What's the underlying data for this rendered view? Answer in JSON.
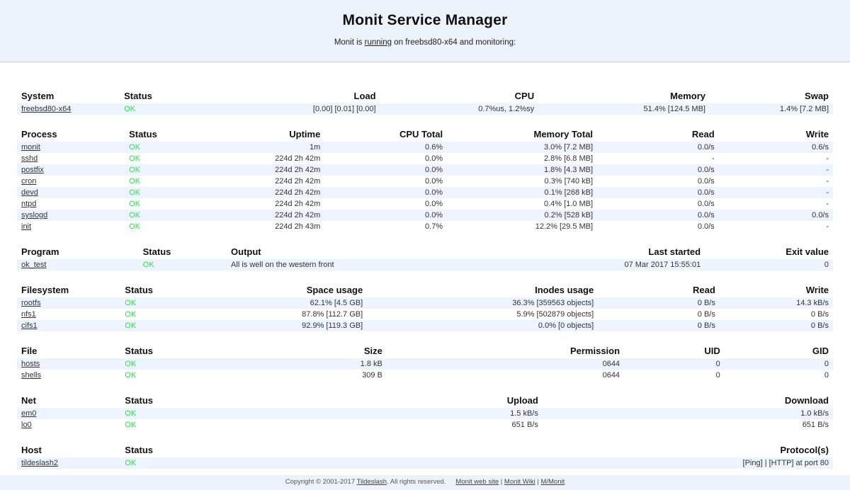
{
  "header": {
    "title": "Monit Service Manager",
    "subtitle_prefix": "Monit is ",
    "subtitle_link": "running",
    "subtitle_suffix": " on freebsd80-x64 and monitoring:"
  },
  "colors": {
    "ok_green": "#2ce24e",
    "band_bg": "#edf3fb",
    "stripe_bg": "#eef4fd",
    "header_border": "#c9c9c9"
  },
  "tables": [
    {
      "id": "system",
      "columns": [
        {
          "label": "System",
          "align": "left"
        },
        {
          "label": "Status",
          "align": "left"
        },
        {
          "label": "Load",
          "align": "right"
        },
        {
          "label": "CPU",
          "align": "right"
        },
        {
          "label": "Memory",
          "align": "right"
        },
        {
          "label": "Swap",
          "align": "right"
        }
      ],
      "rows": [
        [
          "freebsd80-x64",
          "OK",
          "[0.00] [0.01] [0.00]",
          "0.7%us, 1.2%sy",
          "51.4% [124.5 MB]",
          "1.4% [7.2 MB]"
        ]
      ]
    },
    {
      "id": "process",
      "columns": [
        {
          "label": "Process",
          "align": "left"
        },
        {
          "label": "Status",
          "align": "left"
        },
        {
          "label": "Uptime",
          "align": "right"
        },
        {
          "label": "CPU Total",
          "align": "right"
        },
        {
          "label": "Memory Total",
          "align": "right"
        },
        {
          "label": "Read",
          "align": "right"
        },
        {
          "label": "Write",
          "align": "right"
        }
      ],
      "rows": [
        [
          "monit",
          "OK",
          "1m",
          "0.6%",
          "3.0% [7.2 MB]",
          "0.0/s",
          "0.6/s"
        ],
        [
          "sshd",
          "OK",
          "224d 2h 42m",
          "0.0%",
          "2.8% [6.8 MB]",
          "-",
          "-"
        ],
        [
          "postfix",
          "OK",
          "224d 2h 42m",
          "0.0%",
          "1.8% [4.3 MB]",
          "0.0/s",
          "-"
        ],
        [
          "cron",
          "OK",
          "224d 2h 42m",
          "0.0%",
          "0.3% [740 kB]",
          "0.0/s",
          "-"
        ],
        [
          "devd",
          "OK",
          "224d 2h 42m",
          "0.0%",
          "0.1% [268 kB]",
          "0.0/s",
          "-"
        ],
        [
          "ntpd",
          "OK",
          "224d 2h 42m",
          "0.0%",
          "0.4% [1.0 MB]",
          "0.0/s",
          "-"
        ],
        [
          "syslogd",
          "OK",
          "224d 2h 42m",
          "0.0%",
          "0.2% [528 kB]",
          "0.0/s",
          "0.0/s"
        ],
        [
          "init",
          "OK",
          "224d 2h 43m",
          "0.7%",
          "12.2% [29.5 MB]",
          "0.0/s",
          "-"
        ]
      ]
    },
    {
      "id": "program",
      "columns": [
        {
          "label": "Program",
          "align": "left"
        },
        {
          "label": "Status",
          "align": "left"
        },
        {
          "label": "Output",
          "align": "left"
        },
        {
          "label": "Last started",
          "align": "right"
        },
        {
          "label": "Exit value",
          "align": "right"
        }
      ],
      "rows": [
        [
          "ok_test",
          "OK",
          "All is well on the western front",
          "07 Mar 2017 15:55:01",
          "0"
        ]
      ]
    },
    {
      "id": "filesystem",
      "columns": [
        {
          "label": "Filesystem",
          "align": "left"
        },
        {
          "label": "Status",
          "align": "left"
        },
        {
          "label": "Space usage",
          "align": "right"
        },
        {
          "label": "Inodes usage",
          "align": "right"
        },
        {
          "label": "Read",
          "align": "right"
        },
        {
          "label": "Write",
          "align": "right"
        }
      ],
      "rows": [
        [
          "rootfs",
          "OK",
          "62.1% [4.5 GB]",
          "36.3% [359563 objects]",
          "0 B/s",
          "14.3 kB/s"
        ],
        [
          "nfs1",
          "OK",
          "87.8% [112.7 GB]",
          "5.9% [502879 objects]",
          "0 B/s",
          "0 B/s"
        ],
        [
          "cifs1",
          "OK",
          "92.9% [119.3 GB]",
          "0.0% [0 objects]",
          "0 B/s",
          "0 B/s"
        ]
      ]
    },
    {
      "id": "file",
      "columns": [
        {
          "label": "File",
          "align": "left"
        },
        {
          "label": "Status",
          "align": "left"
        },
        {
          "label": "Size",
          "align": "right"
        },
        {
          "label": "Permission",
          "align": "right"
        },
        {
          "label": "UID",
          "align": "right"
        },
        {
          "label": "GID",
          "align": "right"
        }
      ],
      "rows": [
        [
          "hosts",
          "OK",
          "1.8 kB",
          "0644",
          "0",
          "0"
        ],
        [
          "shells",
          "OK",
          "309 B",
          "0644",
          "0",
          "0"
        ]
      ]
    },
    {
      "id": "net",
      "columns": [
        {
          "label": "Net",
          "align": "left"
        },
        {
          "label": "Status",
          "align": "left"
        },
        {
          "label": "Upload",
          "align": "right"
        },
        {
          "label": "Download",
          "align": "right"
        }
      ],
      "rows": [
        [
          "em0",
          "OK",
          "1.5 kB/s",
          "1.0 kB/s"
        ],
        [
          "lo0",
          "OK",
          "651 B/s",
          "651 B/s"
        ]
      ]
    },
    {
      "id": "host",
      "columns": [
        {
          "label": "Host",
          "align": "left"
        },
        {
          "label": "Status",
          "align": "left"
        },
        {
          "label": "Protocol(s)",
          "align": "right"
        }
      ],
      "rows": [
        [
          "tildeslash2",
          "OK",
          "[Ping]  |  [HTTP] at port 80"
        ]
      ]
    }
  ],
  "footer": {
    "copyright_prefix": "Copyright © 2001-2017 ",
    "company_link": "Tildeslash",
    "copyright_suffix": ". All rights reserved.",
    "separator": "|",
    "links": [
      {
        "label": "Monit web site"
      },
      {
        "label": "Monit Wiki"
      },
      {
        "label": "M/Monit"
      }
    ]
  }
}
